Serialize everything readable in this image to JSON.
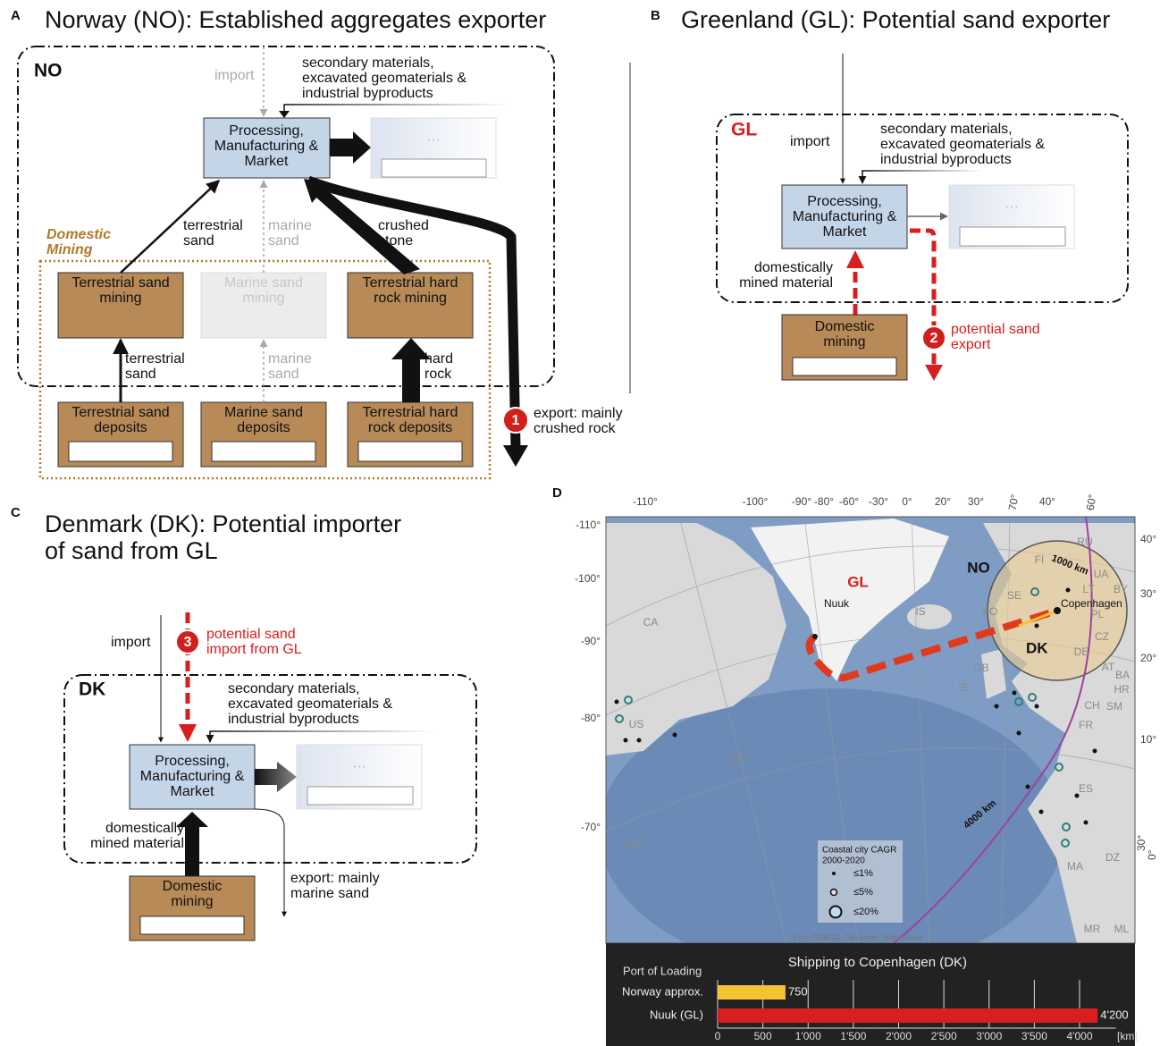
{
  "panels": {
    "A": {
      "letter": "A",
      "title": "Norway (NO): Established aggregates exporter",
      "region": "NO",
      "import": "import",
      "secondary": [
        "secondary materials,",
        "excavated geomaterials &",
        "industrial byproducts"
      ],
      "processing": [
        "Processing,",
        "Manufacturing &",
        "Market"
      ],
      "ellipsis": "···",
      "domestic_mining": [
        "Domestic",
        "Mining"
      ],
      "flow_terrestrial_sand": [
        "terrestrial",
        "sand"
      ],
      "flow_marine_sand": [
        "marine",
        "sand"
      ],
      "flow_crushed_stone": [
        "crushed",
        "stone"
      ],
      "flow_terrestrial_sand_low": [
        "terrestrial",
        "sand"
      ],
      "flow_marine_sand_low": [
        "marine",
        "sand"
      ],
      "flow_hard_rock": [
        "hard",
        "rock"
      ],
      "mining": [
        [
          "Terrestrial sand",
          "mining"
        ],
        [
          "Marine sand",
          "mining"
        ],
        [
          "Terrestrial hard",
          "rock mining"
        ]
      ],
      "deposits": [
        [
          "Terrestrial sand",
          "deposits"
        ],
        [
          "Marine sand",
          "deposits"
        ],
        [
          "Terrestrial hard",
          "rock deposits"
        ]
      ],
      "marker": "1",
      "export": [
        "export: mainly",
        "crushed rock"
      ]
    },
    "B": {
      "letter": "B",
      "title": "Greenland (GL): Potential sand exporter",
      "region": "GL",
      "import": "import",
      "secondary": [
        "secondary materials,",
        "excavated geomaterials &",
        "industrial byproducts"
      ],
      "processing": [
        "Processing,",
        "Manufacturing &",
        "Market"
      ],
      "ellipsis": "···",
      "mined": [
        "domestically",
        "mined material"
      ],
      "mining": [
        "Domestic",
        "mining"
      ],
      "marker": "2",
      "export": [
        "potential sand",
        "export"
      ]
    },
    "C": {
      "letter": "C",
      "title": [
        "Denmark (DK): Potential importer",
        "of sand from GL"
      ],
      "region": "DK",
      "import": "import",
      "marker": "3",
      "import_gl": [
        "potential sand",
        "import from GL"
      ],
      "secondary": [
        "secondary materials,",
        "excavated geomaterials &",
        "industrial byproducts"
      ],
      "processing": [
        "Processing,",
        "Manufacturing &",
        "Market"
      ],
      "ellipsis": "···",
      "mined": [
        "domestically",
        "mined material"
      ],
      "mining": [
        "Domestic",
        "mining"
      ],
      "export": [
        "export: mainly",
        "marine sand"
      ]
    },
    "D": {
      "letter": "D",
      "lon_top": [
        "-110°",
        "-100°",
        "-90°",
        "-80°",
        "-60°",
        "-30°",
        "0°",
        "20°",
        "30°",
        "70°",
        "40°",
        "60°"
      ],
      "lat_left": [
        "-110°",
        "-100°",
        "-90°",
        "-80°",
        "-70°"
      ],
      "lat_right": [
        "40°",
        "30°",
        "20°",
        "10°",
        "30°",
        "0°"
      ],
      "countries": [
        "RU",
        "FI",
        "SE",
        "UA",
        "BY",
        "LT",
        "PL",
        "CA",
        "IS",
        "FO",
        "GB",
        "IE",
        "DE",
        "CZ",
        "AT",
        "FR",
        "CH",
        "ES",
        "MA",
        "DZ",
        "MR",
        "ML",
        "US",
        "PM",
        "BM",
        "SM",
        "HR",
        "BA"
      ],
      "places": {
        "gl": "GL",
        "no": "NO",
        "nuuk": "Nuuk",
        "copenhagen": "Copenhagen",
        "dk": "DK",
        "r1000": "1000 km",
        "r4000": "4000 km"
      },
      "legend": {
        "title": [
          "Coastal city CAGR",
          "2000-2020"
        ],
        "items": [
          "≤1%",
          "≤5%",
          "≤20%"
        ]
      },
      "attribution": "Esri, GEBCO, DeLorme, NaturalVue"
    }
  },
  "chart_data": {
    "type": "bar",
    "title": "Shipping to Copenhagen (DK)",
    "y_label": "Port of Loading",
    "categories": [
      "Norway approx.",
      "Nuuk (GL)"
    ],
    "values": [
      750,
      4200
    ],
    "value_labels": [
      "750",
      "4'200"
    ],
    "colors": [
      "#f5c230",
      "#d81e1e"
    ],
    "xlim": [
      0,
      4400
    ],
    "xticks": [
      0,
      500,
      {
        "value": 1000,
        "label": "1'000"
      },
      {
        "value": 1500,
        "label": "1'500"
      },
      {
        "value": 2000,
        "label": "2'000"
      },
      {
        "value": 2500,
        "label": "2'500"
      },
      {
        "value": 3000,
        "label": "3'000"
      },
      {
        "value": 3500,
        "label": "3'500"
      },
      {
        "value": 4000,
        "label": "4'000"
      }
    ],
    "x_unit": "[km]",
    "grid": true
  }
}
